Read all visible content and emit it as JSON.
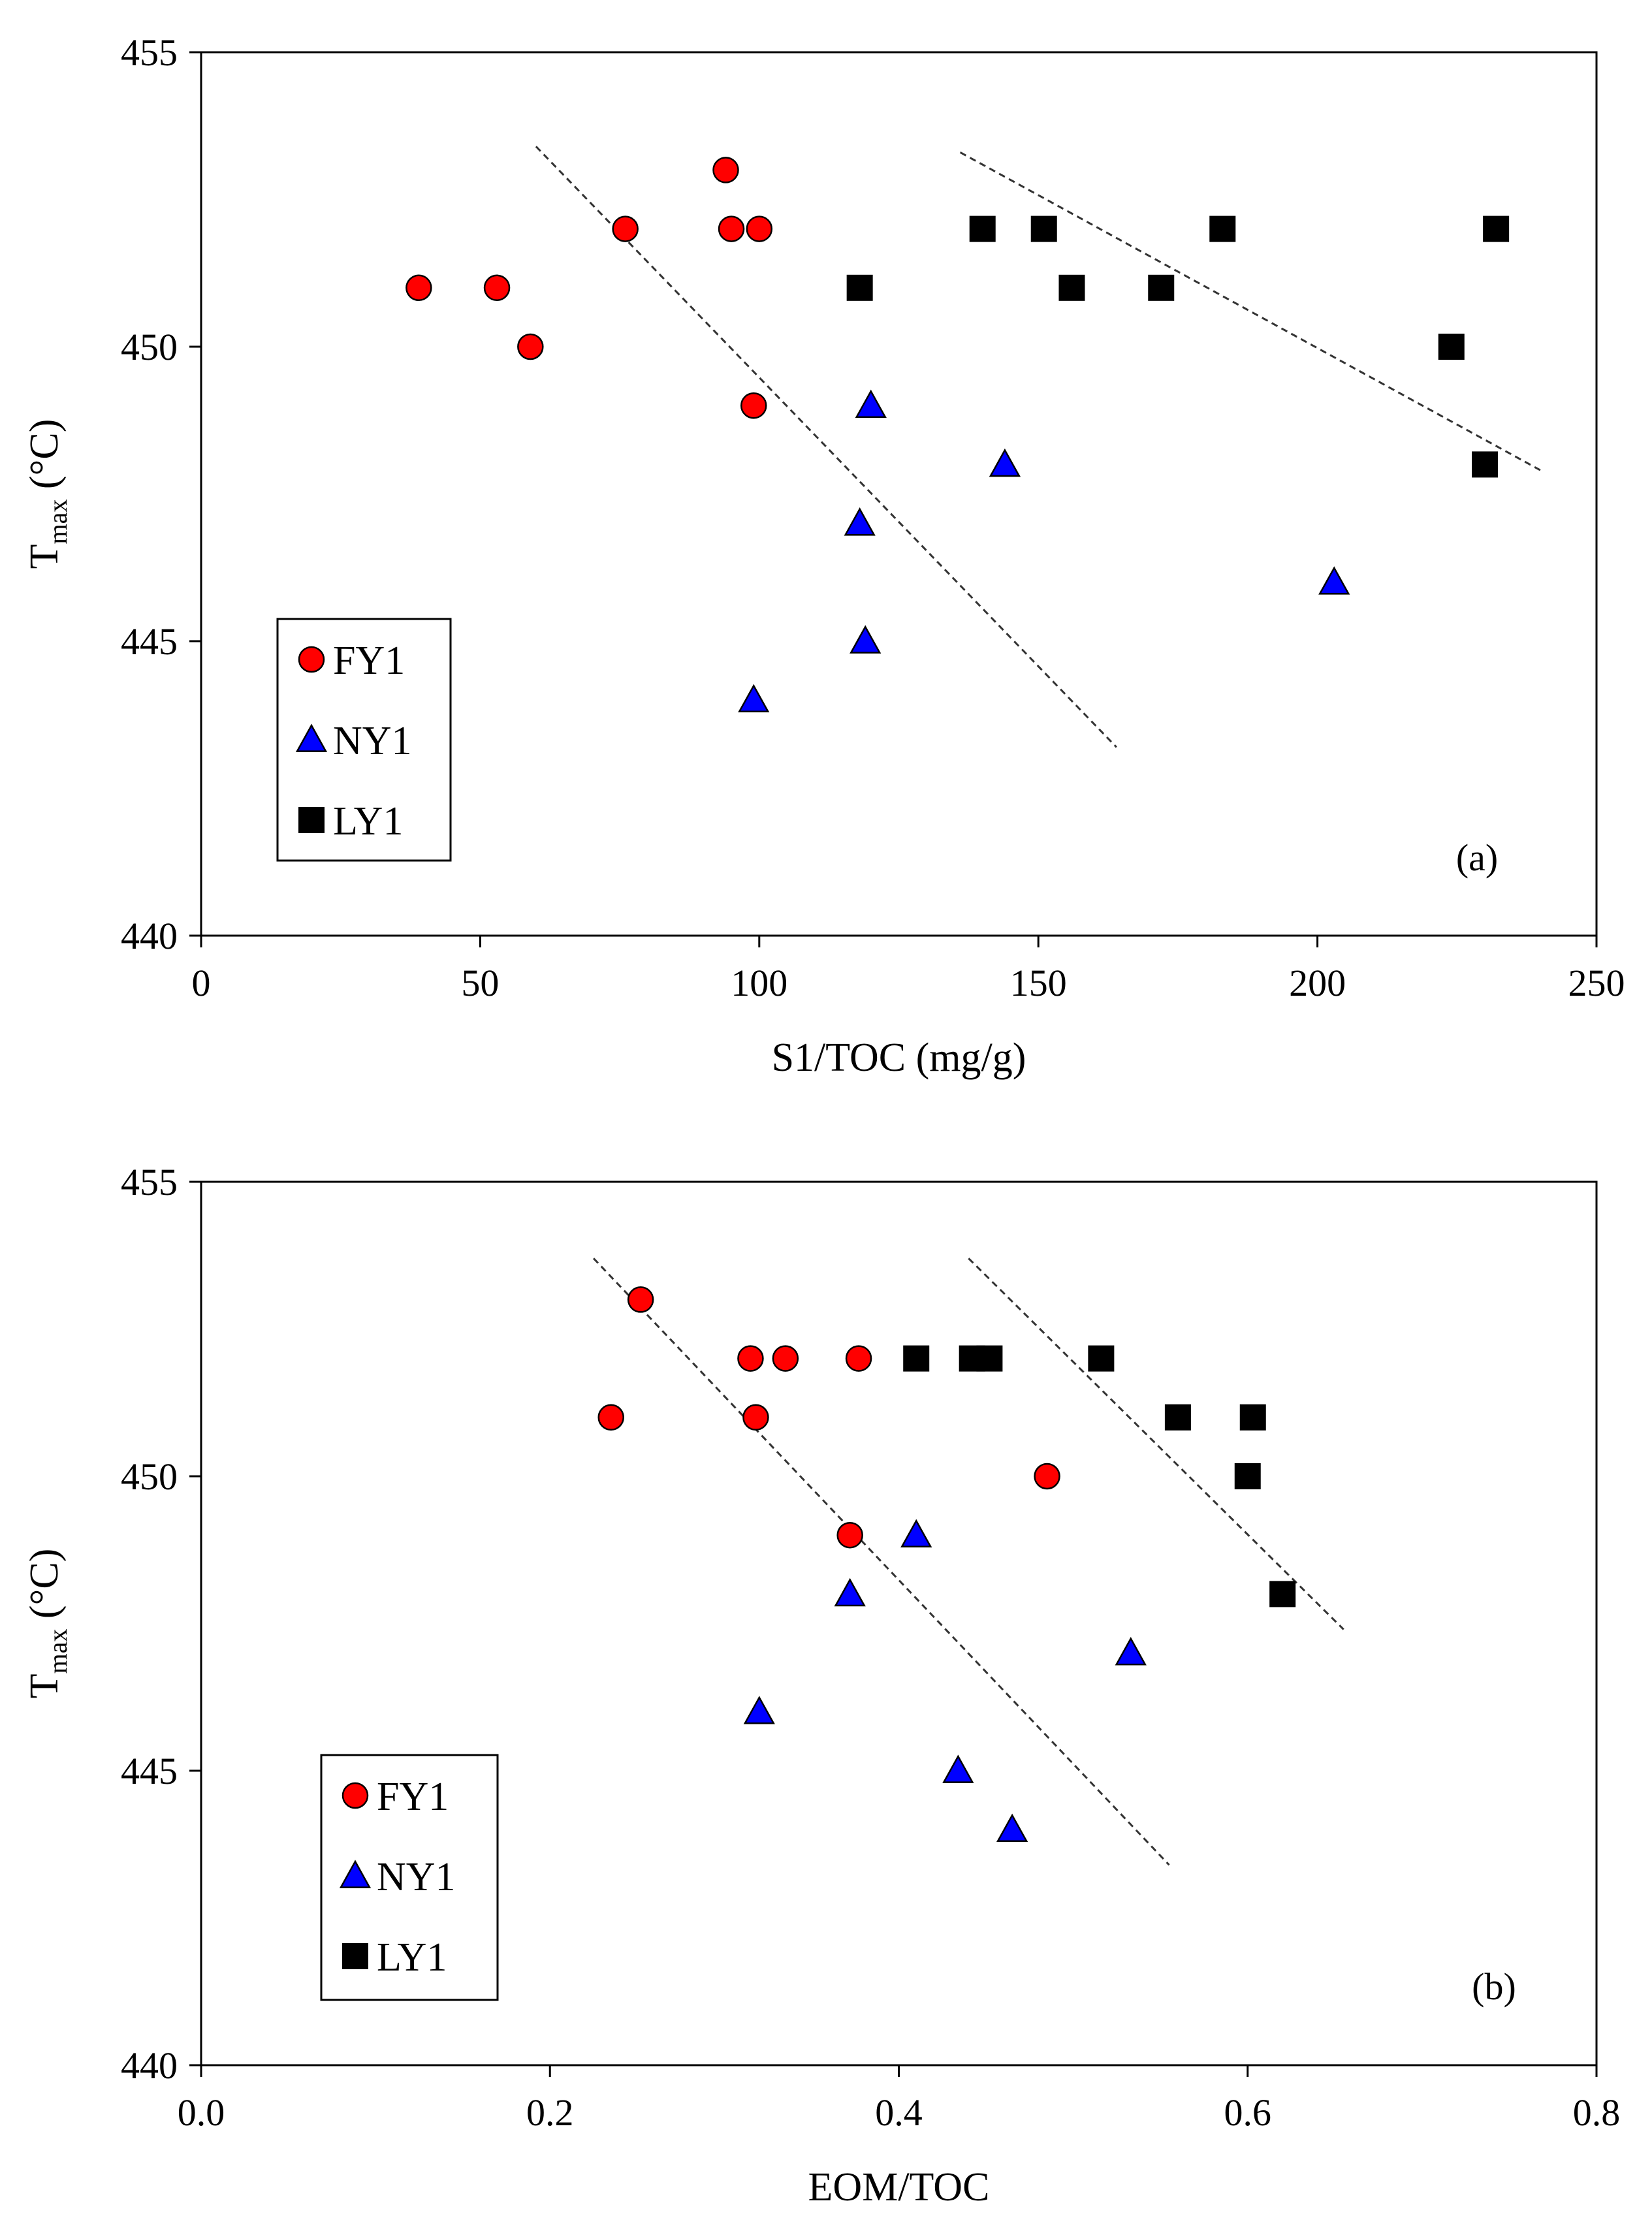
{
  "chart_data": [
    {
      "id": "a",
      "type": "scatter",
      "panel_label": "(a)",
      "xlabel": "S1/TOC (mg/g)",
      "ylabel_main": "T",
      "ylabel_sub": "max",
      "ylabel_unit": " (°C)",
      "xlim": [
        0,
        250
      ],
      "ylim": [
        440,
        455
      ],
      "xticks": [
        0,
        50,
        100,
        150,
        200,
        250
      ],
      "xtick_labels": [
        "0",
        "50",
        "100",
        "150",
        "200",
        "250"
      ],
      "yticks": [
        440,
        445,
        450,
        455
      ],
      "ytick_labels": [
        "440",
        "445",
        "450",
        "455"
      ],
      "legend_position": "center-left",
      "series": [
        {
          "name": "FY1",
          "marker": "circle",
          "color": "#ff0000",
          "x": [
            39,
            53,
            59,
            76,
            94,
            95,
            100,
            99
          ],
          "y": [
            451,
            451,
            450,
            452,
            453,
            452,
            452,
            449
          ]
        },
        {
          "name": "NY1",
          "marker": "triangle",
          "color": "#0000ff",
          "x": [
            120,
            144,
            118,
            119,
            99,
            203
          ],
          "y": [
            449,
            448,
            447,
            445,
            444,
            446
          ]
        },
        {
          "name": "LY1",
          "marker": "square",
          "color": "#000000",
          "x": [
            118,
            140,
            151,
            156,
            172,
            183,
            224,
            230,
            232
          ],
          "y": [
            451,
            452,
            452,
            451,
            451,
            452,
            450,
            448,
            452
          ]
        }
      ],
      "trendlines": [
        {
          "x": [
            60,
            164
          ],
          "y": [
            453.4,
            443.2
          ]
        },
        {
          "x": [
            136,
            240
          ],
          "y": [
            453.3,
            447.9
          ]
        }
      ]
    },
    {
      "id": "b",
      "type": "scatter",
      "panel_label": "(b)",
      "xlabel": "EOM/TOC",
      "ylabel_main": "T",
      "ylabel_sub": "max",
      "ylabel_unit": " (°C)",
      "xlim": [
        0,
        0.8
      ],
      "ylim": [
        440,
        455
      ],
      "xticks": [
        0,
        0.2,
        0.4,
        0.6,
        0.8
      ],
      "xtick_labels": [
        "0.0",
        "0.2",
        "0.4",
        "0.6",
        "0.8"
      ],
      "yticks": [
        440,
        445,
        450,
        455
      ],
      "ytick_labels": [
        "440",
        "445",
        "450",
        "455"
      ],
      "legend_position": "lower-left",
      "series": [
        {
          "name": "FY1",
          "marker": "circle",
          "color": "#ff0000",
          "x": [
            0.235,
            0.252,
            0.315,
            0.335,
            0.377,
            0.318,
            0.372,
            0.485
          ],
          "y": [
            451,
            453,
            452,
            452,
            452,
            451,
            449,
            450
          ]
        },
        {
          "name": "NY1",
          "marker": "triangle",
          "color": "#0000ff",
          "x": [
            0.41,
            0.372,
            0.533,
            0.32,
            0.434,
            0.465
          ],
          "y": [
            449,
            448,
            447,
            446,
            445,
            444
          ]
        },
        {
          "name": "LY1",
          "marker": "square",
          "color": "#000000",
          "x": [
            0.41,
            0.442,
            0.452,
            0.516,
            0.56,
            0.603,
            0.6,
            0.62
          ],
          "y": [
            452,
            452,
            452,
            452,
            451,
            451,
            450,
            448
          ]
        }
      ],
      "trendlines": [
        {
          "x": [
            0.225,
            0.555
          ],
          "y": [
            453.7,
            443.4
          ]
        },
        {
          "x": [
            0.44,
            0.655
          ],
          "y": [
            453.7,
            447.4
          ]
        }
      ]
    }
  ]
}
